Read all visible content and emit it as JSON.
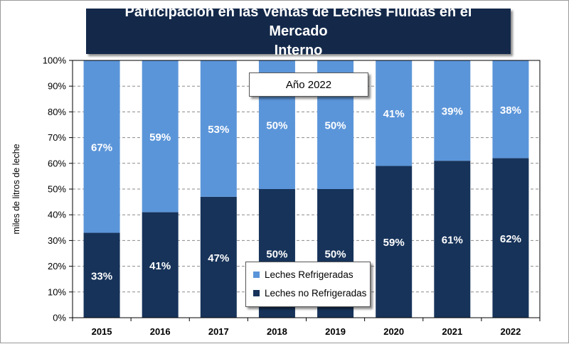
{
  "chart_data": {
    "type": "bar",
    "stacked": true,
    "title": "Participación en las Ventas de Leches Fluidas en el Mercado\nInterno",
    "annotation": "Año 2022",
    "xlabel": "",
    "ylabel": "miles de litros de leche",
    "ylim": [
      0,
      100
    ],
    "y_ticks": [
      "0%",
      "10%",
      "20%",
      "30%",
      "40%",
      "50%",
      "60%",
      "70%",
      "80%",
      "90%",
      "100%"
    ],
    "grid": true,
    "legend_position": "bottom-center",
    "categories": [
      "2015",
      "2016",
      "2017",
      "2018",
      "2019",
      "2020",
      "2021",
      "2022"
    ],
    "series": [
      {
        "name": "Leches no Refrigeradas",
        "values": [
          33,
          41,
          47,
          50,
          50,
          59,
          61,
          62
        ],
        "labels": [
          "33%",
          "41%",
          "47%",
          "50%",
          "50%",
          "59%",
          "61%",
          "62%"
        ],
        "color": "#17335a"
      },
      {
        "name": "Leches Refrigeradas",
        "values": [
          67,
          59,
          53,
          50,
          50,
          41,
          39,
          38
        ],
        "labels": [
          "67%",
          "59%",
          "53%",
          "50%",
          "50%",
          "41%",
          "39%",
          "38%"
        ],
        "color": "#5b95d9"
      }
    ],
    "legend_order": [
      1,
      0
    ]
  }
}
